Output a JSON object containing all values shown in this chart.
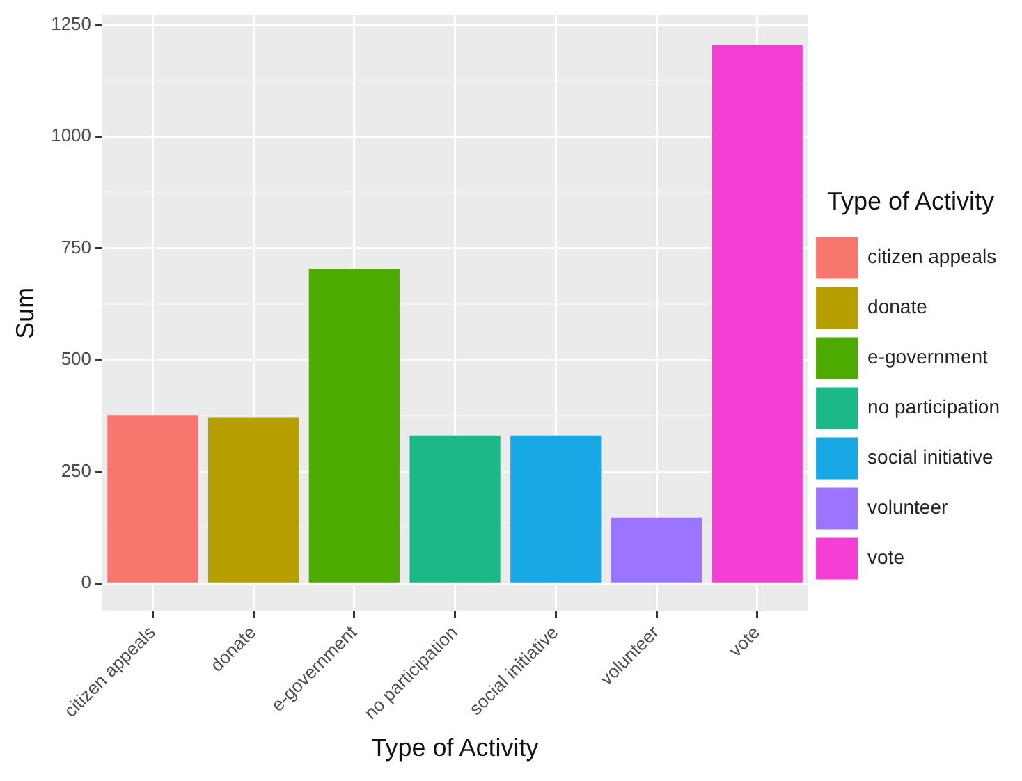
{
  "chart_data": {
    "type": "bar",
    "xlabel": "Type of Activity",
    "ylabel": "Sum",
    "legend_title": "Type of Activity",
    "categories": [
      "citizen appeals",
      "donate",
      "e-government",
      "no participation",
      "social initiative",
      "volunteer",
      "vote"
    ],
    "series": [
      {
        "name": "citizen appeals",
        "color": "#f8766d",
        "values": [
          377,
          null,
          null,
          null,
          null,
          null,
          null
        ]
      },
      {
        "name": "donate",
        "color": "#b79f00",
        "values": [
          null,
          372,
          null,
          null,
          null,
          null,
          null
        ]
      },
      {
        "name": "e-government",
        "color": "#4daa00",
        "values": [
          null,
          null,
          704,
          null,
          null,
          null,
          null
        ]
      },
      {
        "name": "no participation",
        "color": "#1ab987",
        "values": [
          null,
          null,
          null,
          331,
          null,
          null,
          null
        ]
      },
      {
        "name": "social initiative",
        "color": "#18a8e6",
        "values": [
          null,
          null,
          null,
          null,
          331,
          null,
          null
        ]
      },
      {
        "name": "volunteer",
        "color": "#9b75ff",
        "values": [
          null,
          null,
          null,
          null,
          null,
          147,
          null
        ]
      },
      {
        "name": "vote",
        "color": "#f53fd4",
        "values": [
          null,
          null,
          null,
          null,
          null,
          null,
          1205
        ]
      }
    ],
    "ylim": [
      -62,
      1272
    ],
    "yticks": [
      0,
      {
        "value": 125,
        "label": null
      },
      250,
      {
        "value": 375,
        "label": null
      },
      500,
      {
        "value": 625,
        "label": null
      },
      750,
      {
        "value": 875,
        "label": null
      },
      1000,
      {
        "value": 1125,
        "label": null
      },
      1250
    ],
    "grid": true,
    "legend": "right"
  }
}
